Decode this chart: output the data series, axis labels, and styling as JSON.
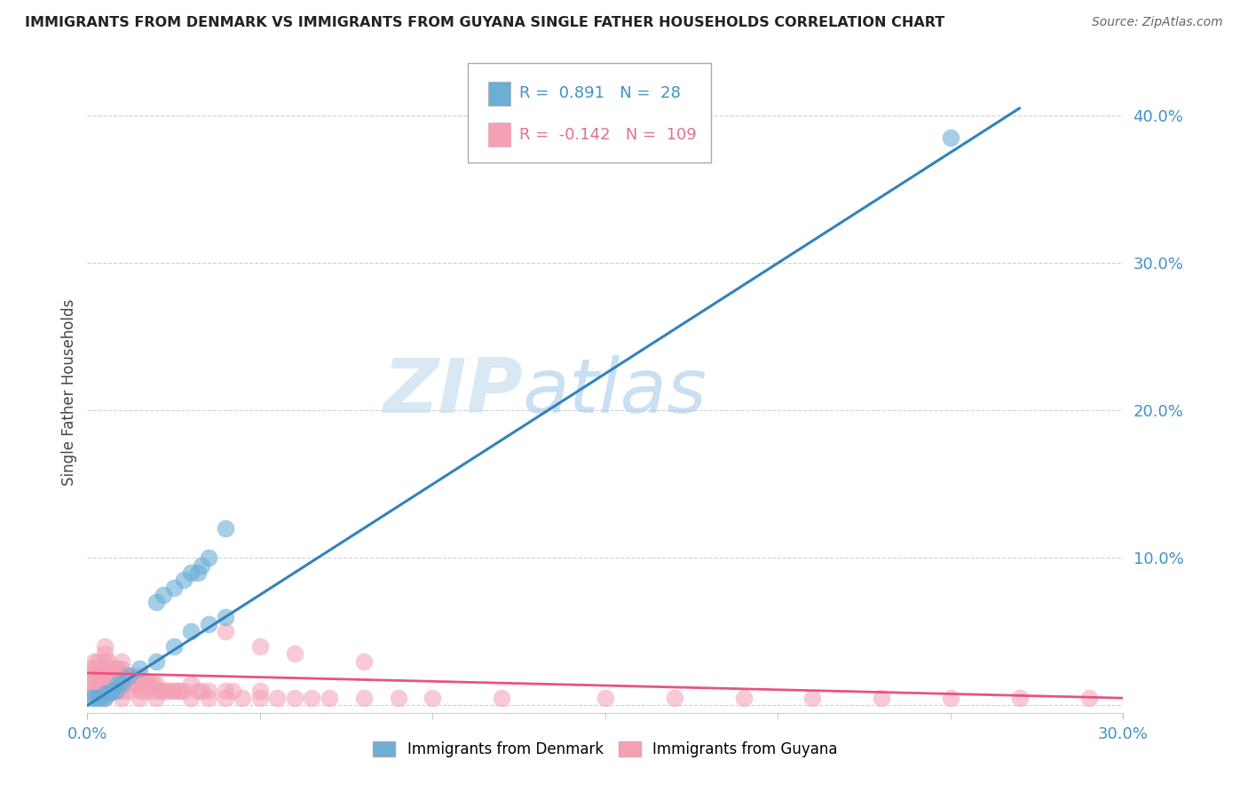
{
  "title": "IMMIGRANTS FROM DENMARK VS IMMIGRANTS FROM GUYANA SINGLE FATHER HOUSEHOLDS CORRELATION CHART",
  "source": "Source: ZipAtlas.com",
  "ylabel": "Single Father Households",
  "yticks": [
    0.0,
    0.1,
    0.2,
    0.3,
    0.4
  ],
  "ytick_labels": [
    "",
    "10.0%",
    "20.0%",
    "30.0%",
    "40.0%"
  ],
  "xlim": [
    0.0,
    0.3
  ],
  "ylim": [
    -0.005,
    0.43
  ],
  "legend1_label": "Immigrants from Denmark",
  "legend2_label": "Immigrants from Guyana",
  "R1": 0.891,
  "N1": 28,
  "R2": -0.142,
  "N2": 109,
  "blue_color": "#6baed6",
  "pink_color": "#f4a0b5",
  "blue_line_color": "#3182bd",
  "pink_line_color": "#e75480",
  "watermark_zip": "ZIP",
  "watermark_atlas": "atlas",
  "blue_trend_x0": 0.0,
  "blue_trend_y0": 0.0,
  "blue_trend_x1": 0.27,
  "blue_trend_y1": 0.405,
  "pink_trend_x0": 0.0,
  "pink_trend_y0": 0.022,
  "pink_trend_x1": 0.3,
  "pink_trend_y1": 0.005,
  "dk_x": [
    0.001,
    0.002,
    0.003,
    0.004,
    0.005,
    0.005,
    0.006,
    0.007,
    0.008,
    0.009,
    0.01,
    0.012,
    0.015,
    0.02,
    0.025,
    0.03,
    0.035,
    0.04,
    0.02,
    0.022,
    0.025,
    0.028,
    0.03,
    0.032,
    0.033,
    0.035,
    0.04,
    0.25
  ],
  "dk_y": [
    0.005,
    0.005,
    0.005,
    0.005,
    0.005,
    0.008,
    0.008,
    0.01,
    0.01,
    0.015,
    0.015,
    0.02,
    0.025,
    0.03,
    0.04,
    0.05,
    0.055,
    0.06,
    0.07,
    0.075,
    0.08,
    0.085,
    0.09,
    0.09,
    0.095,
    0.1,
    0.12,
    0.385
  ],
  "gy_x": [
    0.001,
    0.001,
    0.001,
    0.001,
    0.002,
    0.002,
    0.002,
    0.002,
    0.002,
    0.003,
    0.003,
    0.003,
    0.003,
    0.003,
    0.004,
    0.004,
    0.004,
    0.004,
    0.005,
    0.005,
    0.005,
    0.005,
    0.005,
    0.005,
    0.005,
    0.005,
    0.006,
    0.006,
    0.006,
    0.006,
    0.006,
    0.007,
    0.007,
    0.007,
    0.008,
    0.008,
    0.008,
    0.008,
    0.009,
    0.009,
    0.009,
    0.009,
    0.01,
    0.01,
    0.01,
    0.01,
    0.01,
    0.01,
    0.012,
    0.012,
    0.012,
    0.013,
    0.013,
    0.014,
    0.015,
    0.015,
    0.015,
    0.015,
    0.016,
    0.016,
    0.017,
    0.018,
    0.018,
    0.019,
    0.02,
    0.02,
    0.02,
    0.021,
    0.022,
    0.023,
    0.024,
    0.025,
    0.026,
    0.027,
    0.028,
    0.03,
    0.03,
    0.032,
    0.033,
    0.035,
    0.035,
    0.04,
    0.04,
    0.042,
    0.045,
    0.05,
    0.05,
    0.055,
    0.06,
    0.065,
    0.07,
    0.08,
    0.09,
    0.1,
    0.12,
    0.15,
    0.17,
    0.19,
    0.21,
    0.23,
    0.25,
    0.27,
    0.29,
    0.04,
    0.05,
    0.06,
    0.08
  ],
  "gy_y": [
    0.01,
    0.015,
    0.02,
    0.025,
    0.01,
    0.015,
    0.02,
    0.025,
    0.03,
    0.01,
    0.015,
    0.02,
    0.025,
    0.03,
    0.01,
    0.015,
    0.02,
    0.025,
    0.005,
    0.01,
    0.015,
    0.02,
    0.025,
    0.03,
    0.035,
    0.04,
    0.01,
    0.015,
    0.02,
    0.025,
    0.03,
    0.01,
    0.015,
    0.02,
    0.01,
    0.015,
    0.02,
    0.025,
    0.01,
    0.015,
    0.02,
    0.025,
    0.005,
    0.01,
    0.015,
    0.02,
    0.025,
    0.03,
    0.01,
    0.015,
    0.02,
    0.015,
    0.02,
    0.015,
    0.005,
    0.01,
    0.015,
    0.02,
    0.01,
    0.015,
    0.015,
    0.01,
    0.015,
    0.015,
    0.005,
    0.01,
    0.015,
    0.01,
    0.01,
    0.01,
    0.01,
    0.01,
    0.01,
    0.01,
    0.01,
    0.005,
    0.015,
    0.01,
    0.01,
    0.005,
    0.01,
    0.005,
    0.01,
    0.01,
    0.005,
    0.005,
    0.01,
    0.005,
    0.005,
    0.005,
    0.005,
    0.005,
    0.005,
    0.005,
    0.005,
    0.005,
    0.005,
    0.005,
    0.005,
    0.005,
    0.005,
    0.005,
    0.005,
    0.05,
    0.04,
    0.035,
    0.03
  ]
}
